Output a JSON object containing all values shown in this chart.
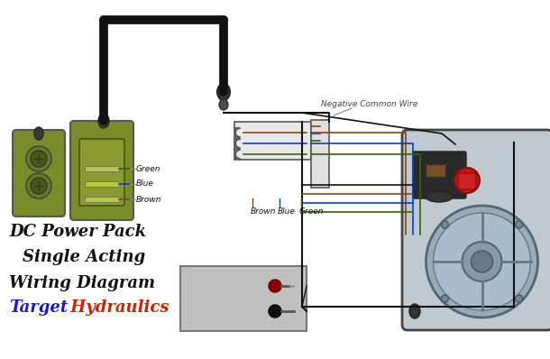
{
  "background_color": "#ffffff",
  "text_dc_power_pack": "DC Power Pack",
  "text_single_acting": "Single Acting",
  "text_wiring_diagram": "Wiring Diagram",
  "text_target": "Target",
  "text_hydraulics": " Hydraulics",
  "text_target_color": "#1a1acc",
  "text_hydraulics_color": "#cc2200",
  "text_black": "#111111",
  "wire_color_green": "#336600",
  "wire_color_blue": "#0044bb",
  "wire_color_brown": "#8B4513",
  "wire_color_black": "#111111",
  "label_green": "Green",
  "label_blue": "Blue",
  "label_brown": "Brown",
  "label_neg_common": "Negative Common Wire",
  "olive_color": "#7a8c2a",
  "olive_dark": "#5a6c1a",
  "motor_body_color": "#c0c8d0",
  "motor_face_color": "#9aaabb",
  "battery_color": "#c0c0c0"
}
